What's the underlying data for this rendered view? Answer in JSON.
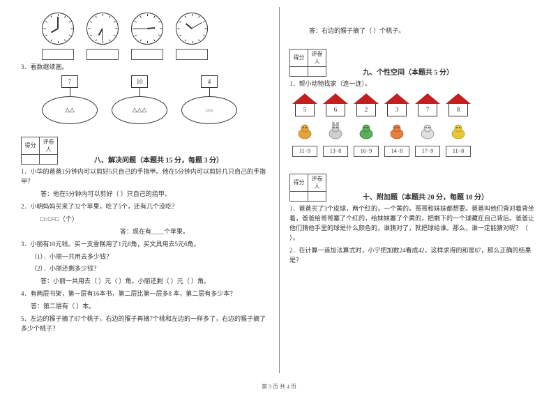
{
  "footer": "第 3 页  共 4 页",
  "left": {
    "clocks": [
      {
        "hour_angle": 240,
        "minute_angle": 0
      },
      {
        "hour_angle": 210,
        "minute_angle": 180
      },
      {
        "hour_angle": 85,
        "minute_angle": 270
      },
      {
        "hour_angle": 310,
        "minute_angle": 60
      }
    ],
    "q3_label": "3．看数继续画。",
    "q3_items": [
      {
        "num": "7",
        "shapes": "△△"
      },
      {
        "num": "10",
        "shapes": "△△△"
      },
      {
        "num": "4",
        "shapes": "○○"
      }
    ],
    "score_labels": {
      "score": "得分",
      "grader": "评卷人"
    },
    "sec8_title": "八、解决问题（本题共 15 分，每题 3 分）",
    "q1_text": "1．小华的爸爸1分钟内可以剪好5只自己的手指甲。他在5分钟内可以剪好几只自己的手指甲？",
    "q1_ans": "答：他在5分钟内可以剪好（    ）只自己的指甲。",
    "q2_text": "2．小明妈妈买来了32个苹果，吃了5个，还有几个没吃？",
    "q2_eq": "□○□=□（个）",
    "q2_ans": "答：现在有____个苹果。",
    "q3_text": "3．小丽有10元钱。买一支雪糕用了1元8角，买文具用去5元6角。",
    "q3_sub1": "（1）．小丽一共用去多少钱？",
    "q3_sub2": "（2）．小丽还剩多少钱？",
    "q3_ans": "答：小丽一共用去（    ）元（    ）角。小丽还剩（    ）元（    ）角。",
    "q4_text": "4．有两层书架，第一层有16本书，第二层比第一层多8 本，第二层有多少本？",
    "q4_ans": "答：第二层有（    ）本。",
    "q5_text": "5．左边的猴子摘了87个桃子，右边的猴子再摘7个桃和左边的一样多了，右边的猴子摘了多少个桃子？"
  },
  "right": {
    "q5_ans": "答：右边的猴子摘了（    ）个桃子。",
    "sec9_title": "九、个性空间（本题共 5 分）",
    "q9_text": "1．帮小动物找家（连一连）。",
    "houses": [
      "5",
      "6",
      "2",
      "3",
      "7",
      "8"
    ],
    "animals": [
      {
        "color1": "#e6a23c",
        "color2": "#b07d2a",
        "type": "dog"
      },
      {
        "color1": "#d0d0d0",
        "color2": "#888",
        "type": "rabbit"
      },
      {
        "color1": "#5daf5d",
        "color2": "#2e7d2e",
        "type": "frog"
      },
      {
        "color1": "#e67e3c",
        "color2": "#b0522a",
        "type": "snake"
      },
      {
        "color1": "#e0e0e0",
        "color2": "#888",
        "type": "cat"
      },
      {
        "color1": "#e6c83c",
        "color2": "#b09a2a",
        "type": "bird"
      }
    ],
    "equations": [
      "11−9",
      "13−8",
      "16−9",
      "14−8",
      "17−9",
      "11−8"
    ],
    "sec10_title": "十、附加题（本题共 20 分，每题 10 分）",
    "q10_1": "1．爸爸买了3个皮球，两个红的，一个黄的。哥哥和妹妹都想要。爸爸叫他们背对着背坐着，爸爸给哥哥塞了个红的，给妹妹塞了个黄的，把剩下的一个球藏在自己背后。爸爸让他们猜他手里的球是什么颜色的，谁猜对了，就把球给谁。那么，谁一定能猜对呢？（    ）。",
    "q10_2": "2．在计算一道加法算式时，小宁把加数24看成42，这样求得的和是87，那么正确的结果是？"
  }
}
